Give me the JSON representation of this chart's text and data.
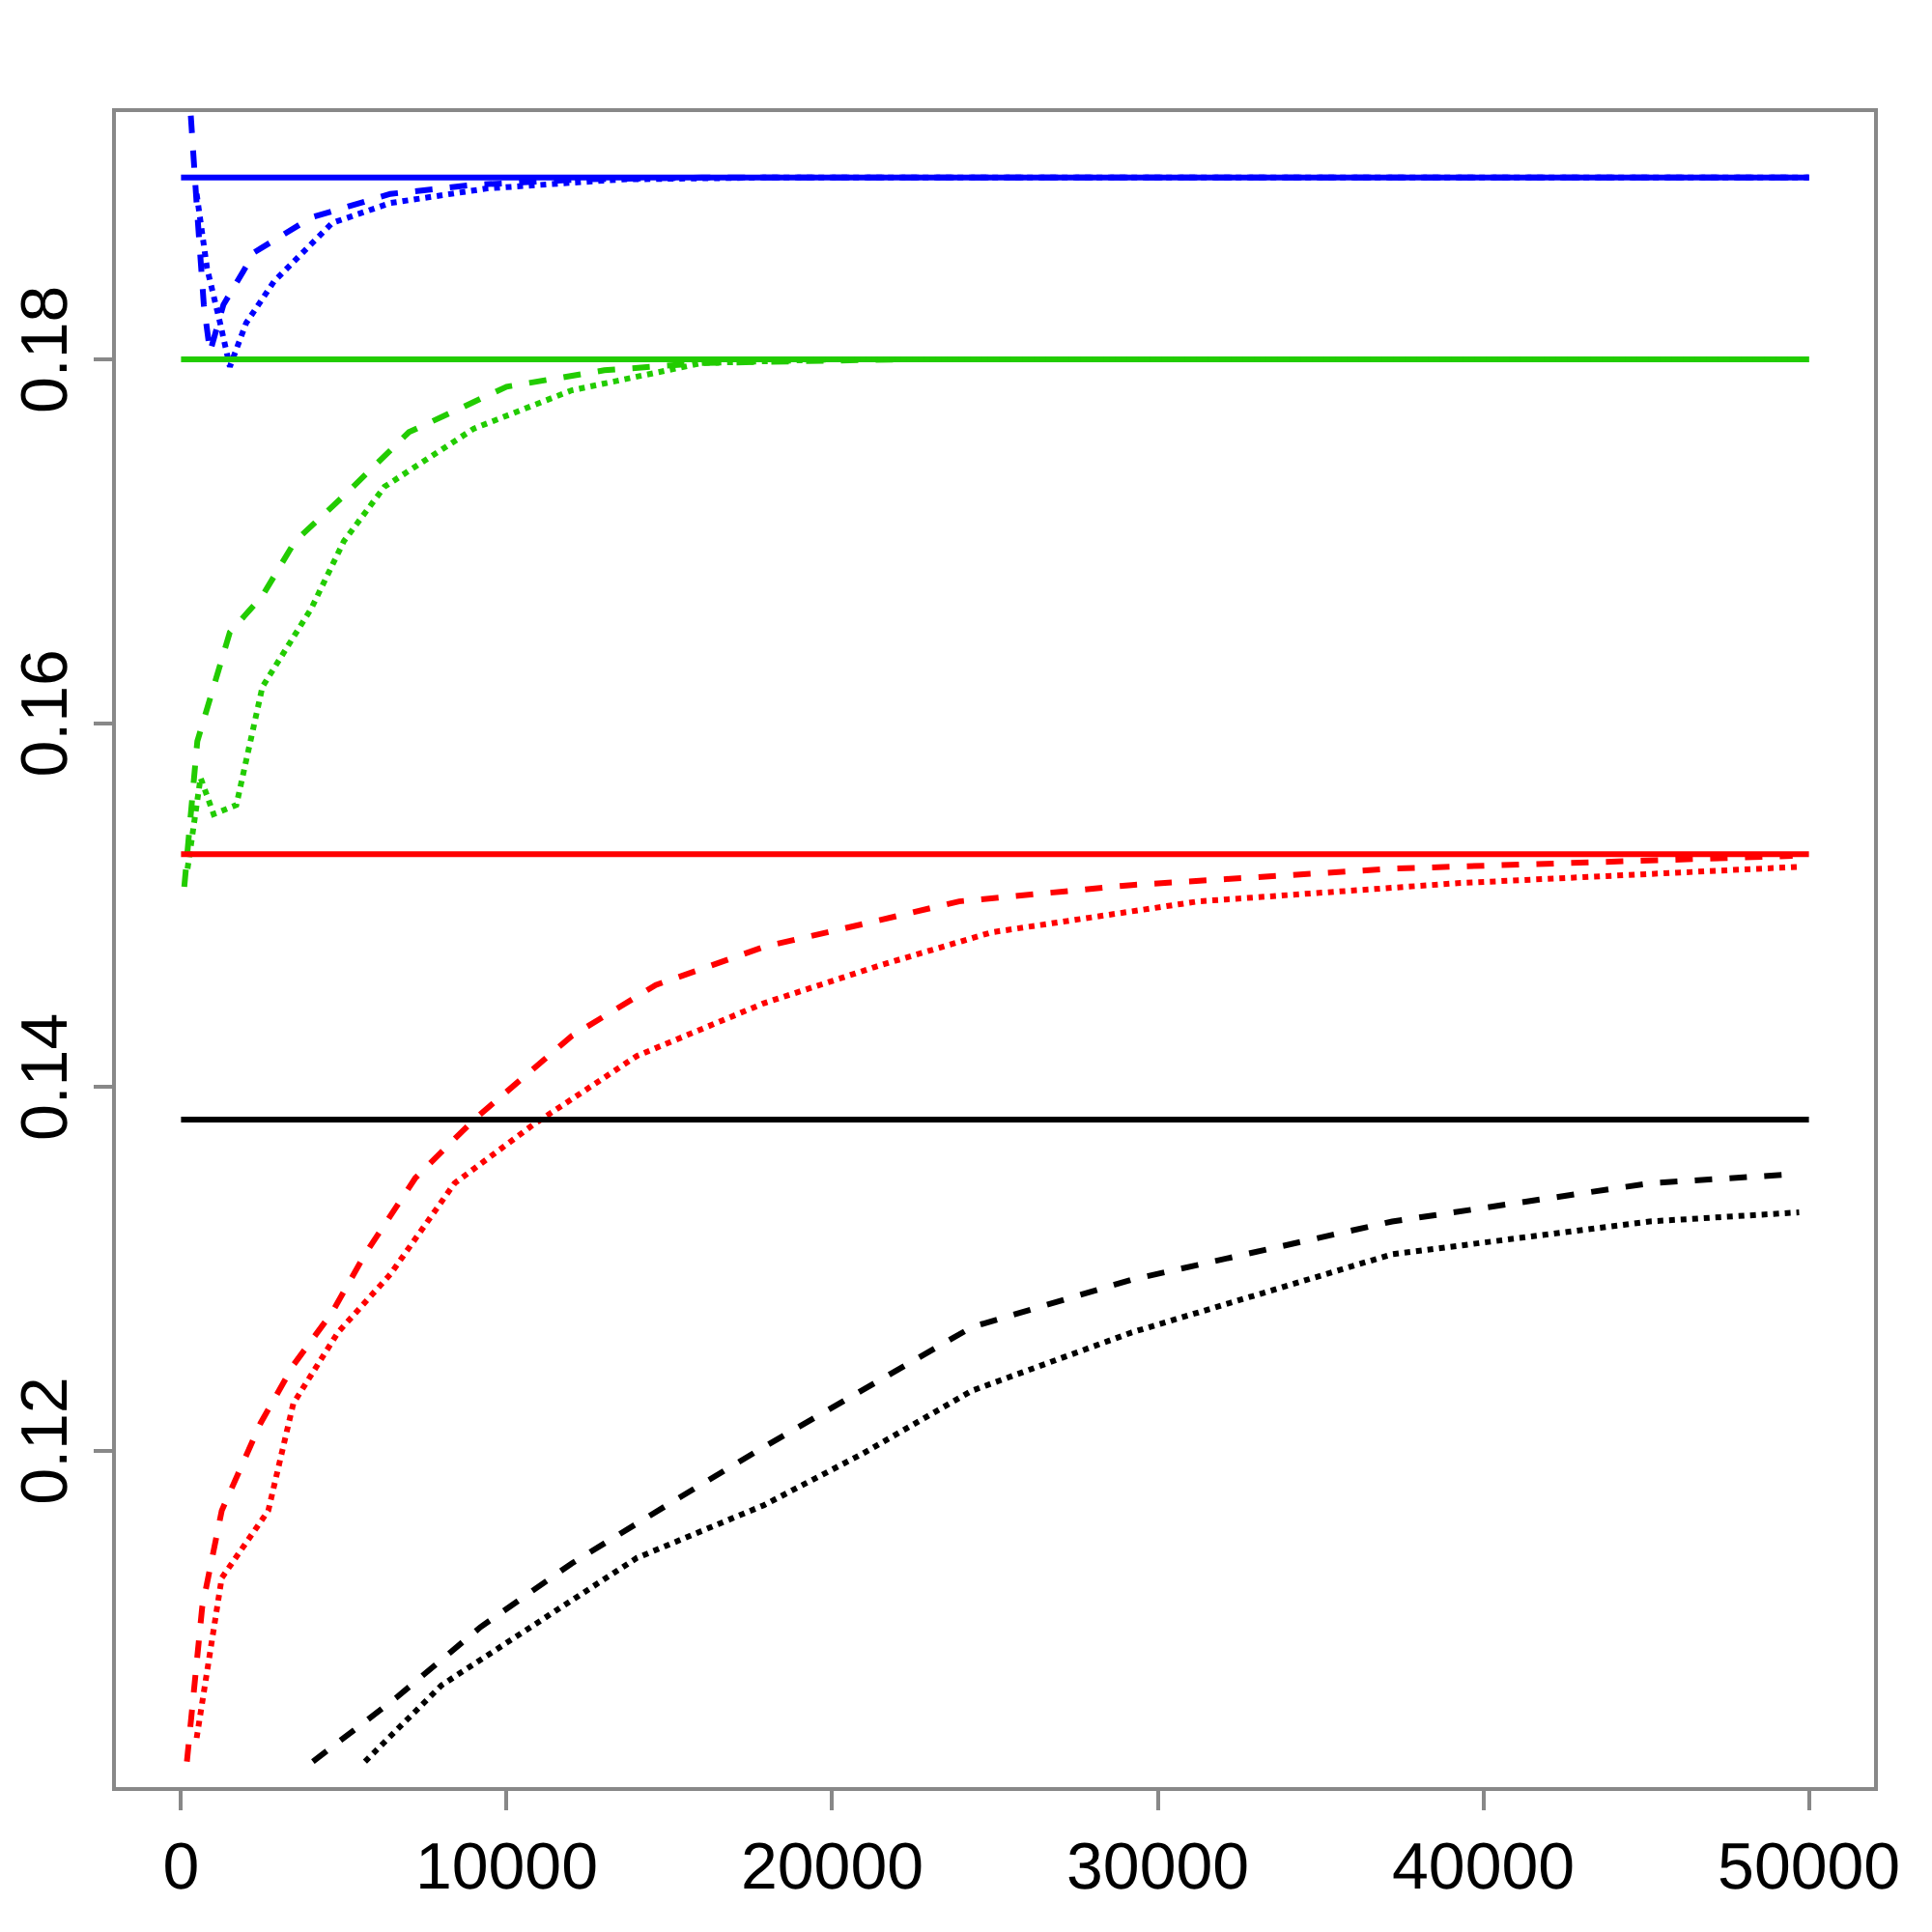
{
  "chart_data": {
    "type": "line",
    "xlim": [
      -2000,
      52000
    ],
    "ylim": [
      0.1015,
      0.1936
    ],
    "xticks": [
      0,
      10000,
      20000,
      30000,
      40000,
      50000
    ],
    "yticks": [
      0.12,
      0.14,
      0.16,
      0.18
    ],
    "grid": false,
    "series": [
      {
        "color": "#0000ff",
        "line_style": "solid",
        "x": [
          0,
          50000
        ],
        "values": [
          0.19,
          0.19
        ]
      },
      {
        "color": "#0000ff",
        "line_style": "dashed",
        "x": [
          300,
          500,
          700,
          890,
          1300,
          2260,
          4000,
          6430,
          9000,
          12380,
          16000,
          50000
        ],
        "values": [
          0.1934,
          0.188,
          0.183,
          0.1804,
          0.183,
          0.1859,
          0.1878,
          0.1891,
          0.1896,
          0.1899,
          0.19,
          0.19
        ]
      },
      {
        "color": "#0000ff",
        "line_style": "dotted",
        "x": [
          480,
          800,
          1200,
          1500,
          2000,
          2860,
          4640,
          6430,
          9400,
          13570,
          18000,
          50000
        ],
        "values": [
          0.1891,
          0.185,
          0.182,
          0.1796,
          0.182,
          0.1843,
          0.1875,
          0.1886,
          0.1894,
          0.1899,
          0.19,
          0.19
        ]
      },
      {
        "color": "#22cc00",
        "line_style": "solid",
        "x": [
          0,
          50000
        ],
        "values": [
          0.18,
          0.18
        ]
      },
      {
        "color": "#22cc00",
        "line_style": "dashed",
        "x": [
          100,
          300,
          500,
          1000,
          1500,
          2500,
          3500,
          5000,
          7000,
          10000,
          13000,
          16000,
          22000,
          50000
        ],
        "values": [
          0.151,
          0.155,
          0.159,
          0.162,
          0.165,
          0.167,
          0.17,
          0.1725,
          0.176,
          0.1785,
          0.1794,
          0.1798,
          0.18,
          0.18
        ]
      },
      {
        "color": "#22cc00",
        "line_style": "dotted",
        "x": [
          200,
          600,
          1000,
          1700,
          2500,
          4000,
          5000,
          6250,
          9000,
          12000,
          16000,
          20000,
          50000
        ],
        "values": [
          0.152,
          0.157,
          0.155,
          0.1555,
          0.162,
          0.1663,
          0.17,
          0.173,
          0.1762,
          0.1783,
          0.1798,
          0.18,
          0.18
        ]
      },
      {
        "color": "#ff0000",
        "line_style": "solid",
        "x": [
          0,
          50000
        ],
        "values": [
          0.1528,
          0.1528
        ]
      },
      {
        "color": "#ff0000",
        "line_style": "dashed",
        "x": [
          180,
          650,
          1250,
          2440,
          3450,
          4640,
          5650,
          7200,
          9000,
          12000,
          14580,
          17900,
          21300,
          23900,
          29200,
          37200,
          49500
        ],
        "values": [
          0.1029,
          0.1114,
          0.1167,
          0.1215,
          0.1247,
          0.1276,
          0.1308,
          0.135,
          0.1382,
          0.1428,
          0.1456,
          0.1477,
          0.1491,
          0.1502,
          0.1511,
          0.152,
          0.1527
        ]
      },
      {
        "color": "#ff0000",
        "line_style": "dotted",
        "x": [
          480,
          1250,
          2680,
          3450,
          4820,
          6430,
          8400,
          10800,
          14000,
          17900,
          21500,
          24900,
          31250,
          39200,
          49700
        ],
        "values": [
          0.1042,
          0.113,
          0.1167,
          0.1226,
          0.1265,
          0.1297,
          0.1347,
          0.1379,
          0.1417,
          0.1446,
          0.1467,
          0.1485,
          0.1502,
          0.1512,
          0.1521
        ]
      },
      {
        "color": "#000000",
        "line_style": "solid",
        "x": [
          0,
          50000
        ],
        "values": [
          0.1382,
          0.1382
        ]
      },
      {
        "color": "#000000",
        "line_style": "dashed",
        "x": [
          4050,
          6600,
          9200,
          12000,
          15200,
          17900,
          20900,
          24300,
          29200,
          37200,
          45100,
          49500
        ],
        "values": [
          0.1029,
          0.1064,
          0.1103,
          0.1138,
          0.1173,
          0.1202,
          0.1233,
          0.1268,
          0.1294,
          0.1326,
          0.1347,
          0.1352
        ]
      },
      {
        "color": "#000000",
        "line_style": "dotted",
        "x": [
          5650,
          8000,
          11000,
          14000,
          17900,
          20900,
          24300,
          29200,
          37200,
          45100,
          49700
        ],
        "values": [
          0.1029,
          0.1071,
          0.1106,
          0.1141,
          0.117,
          0.1198,
          0.1233,
          0.1265,
          0.1308,
          0.1326,
          0.1331
        ]
      }
    ]
  }
}
